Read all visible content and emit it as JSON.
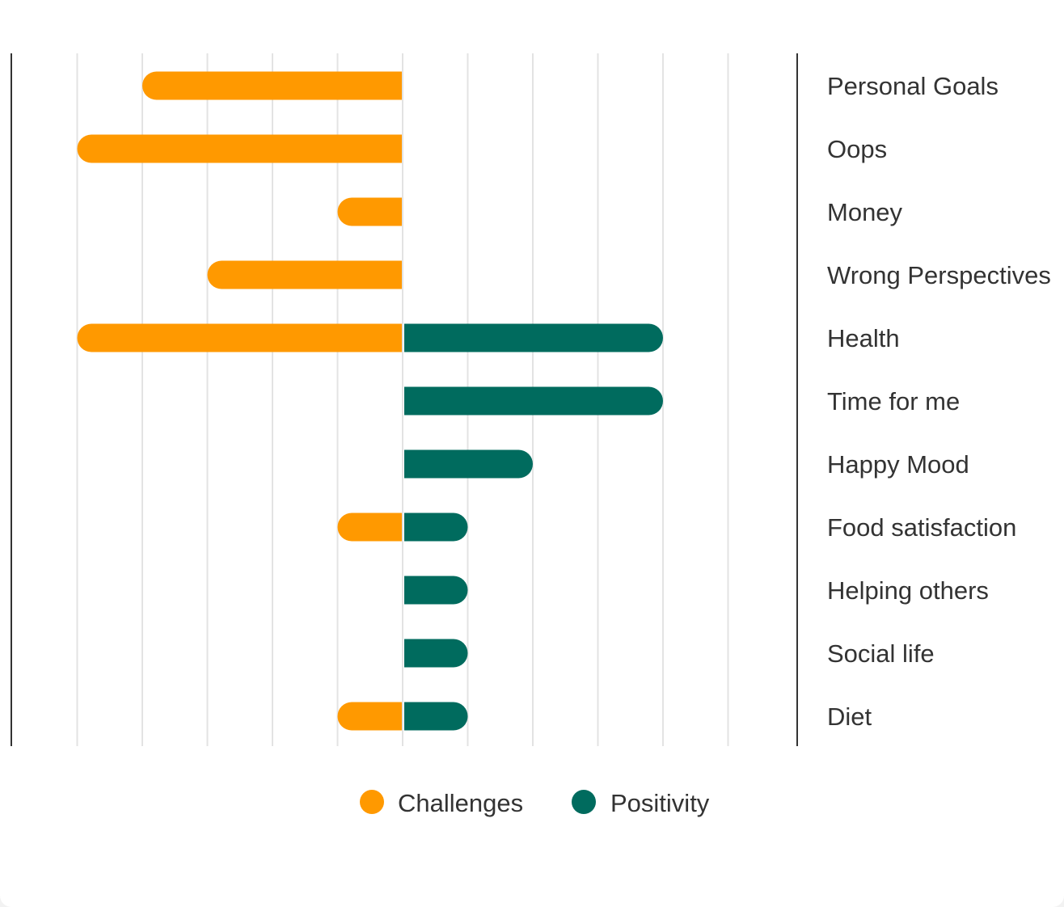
{
  "chart_data": {
    "type": "bar",
    "orientation": "horizontal-diverging",
    "categories": [
      "Personal Goals",
      "Oops",
      "Money",
      "Wrong Perspectives",
      "Health",
      "Time for me",
      "Happy Mood",
      "Food satisfaction",
      "Helping others",
      "Social life",
      "Diet"
    ],
    "series": [
      {
        "name": "Challenges",
        "color": "#FF9900",
        "values": [
          -4,
          -5,
          -1,
          -3,
          -5,
          0,
          0,
          -1,
          0,
          0,
          -1
        ]
      },
      {
        "name": "Positivity",
        "color": "#006B5E",
        "values": [
          0,
          0,
          0,
          0,
          4,
          4,
          2,
          1,
          1,
          1,
          1
        ]
      }
    ],
    "xlim": [
      -6,
      6
    ],
    "grid": true,
    "x_tick_labels_shown": false,
    "legend_position": "bottom-center"
  },
  "legend": {
    "items": [
      {
        "label": "Challenges",
        "color": "#FF9900"
      },
      {
        "label": "Positivity",
        "color": "#006B5E"
      }
    ]
  }
}
